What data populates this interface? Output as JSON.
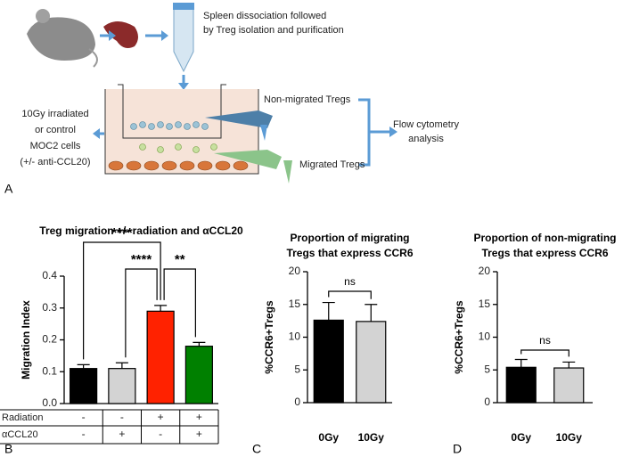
{
  "diagram": {
    "spleen_step": [
      "Spleen dissociation followed",
      "by Treg isolation and purification"
    ],
    "non_migrated": "Non-migrated Tregs",
    "migrated": "Migrated Tregs",
    "analysis": [
      "Flow cytometry",
      "analysis"
    ],
    "cells": [
      "10Gy irradiated",
      "or control",
      "MOC2 cells",
      "(+/- anti-CCL20)"
    ]
  },
  "panel_labels": [
    "A",
    "B",
    "C",
    "D"
  ],
  "chart_data": [
    {
      "type": "bar",
      "title": "Treg migration +/- radiation and αCCL20",
      "y_label": "Migration Index",
      "categories": [
        null,
        null,
        null,
        null
      ],
      "values": [
        0.11,
        0.11,
        0.29,
        0.18
      ],
      "errors": [
        0.012,
        0.018,
        0.018,
        0.012
      ],
      "colors": [
        "#000000",
        "#d3d3d3",
        "#ff2200",
        "#008000"
      ],
      "ylim": [
        0,
        0.4
      ],
      "yticks": [
        {
          "value": 0,
          "label": "0.0"
        },
        0.1,
        0.2,
        0.3,
        0.4
      ],
      "table": [
        {
          "name": "Radiation",
          "cells": [
            "-",
            "-",
            "+",
            "+"
          ]
        },
        {
          "name": "αCCL20",
          "cells": [
            "-",
            "+",
            "-",
            "+"
          ]
        }
      ],
      "annotations": [
        {
          "label": "****",
          "between": [
            0,
            2
          ]
        },
        {
          "label": "****",
          "between": [
            1,
            2
          ]
        },
        {
          "label": "**",
          "between": [
            2,
            3
          ]
        }
      ]
    },
    {
      "type": "bar",
      "title": [
        "Proportion of migrating",
        "Tregs that express CCR6"
      ],
      "y_label": "%CCR6+Tregs",
      "categories": [
        "0Gy",
        "10Gy"
      ],
      "values": [
        12.6,
        12.4
      ],
      "errors": [
        2.7,
        2.6
      ],
      "colors": [
        "#000000",
        "#d3d3d3"
      ],
      "ylim": [
        0,
        20
      ],
      "yticks": [
        0,
        5,
        10,
        15,
        20
      ],
      "annotations": [
        {
          "label": "ns",
          "between": [
            0,
            1
          ]
        }
      ]
    },
    {
      "type": "bar",
      "title": [
        "Proportion of non-migrating",
        "Tregs that express CCR6"
      ],
      "y_label": "%CCR6+Tregs",
      "categories": [
        "0Gy",
        "10Gy"
      ],
      "values": [
        5.4,
        5.3
      ],
      "errors": [
        1.2,
        0.9
      ],
      "colors": [
        "#000000",
        "#d3d3d3"
      ],
      "ylim": [
        0,
        20
      ],
      "yticks": [
        0,
        5,
        10,
        15,
        20
      ],
      "annotations": [
        {
          "label": "ns",
          "between": [
            0,
            1
          ]
        }
      ]
    }
  ]
}
